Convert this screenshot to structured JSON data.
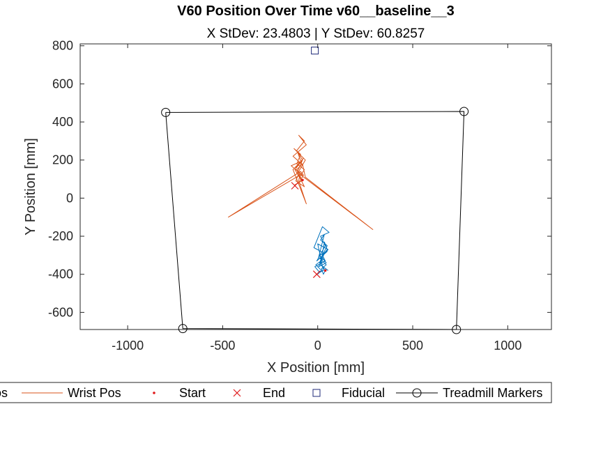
{
  "chart_data": {
    "type": "line",
    "title": "V60 Position Over Time v60__baseline__3",
    "subtitle": "X StDev: 23.4803  |  Y StDev: 60.8257",
    "xlabel": "X Position [mm]",
    "ylabel": "Y Position [mm]",
    "xlim": [
      -1250,
      1230
    ],
    "ylim": [
      -690,
      810
    ],
    "xticks": [
      -1000,
      -500,
      0,
      500,
      1000
    ],
    "xtick_labels": [
      "-1000",
      "-500",
      "0",
      "500",
      "1000"
    ],
    "yticks": [
      -600,
      -400,
      -200,
      0,
      200,
      400,
      600,
      800
    ],
    "ytick_labels": [
      "-600",
      "-400",
      "-200",
      "0",
      "200",
      "400",
      "600",
      "800"
    ],
    "grid": false,
    "legend_position": "bottom-outside",
    "legend": [
      "os",
      "Wrist Pos",
      "Start",
      "End",
      "Fiducial",
      "Treadmill Markers"
    ],
    "series": [
      {
        "name": "Wrist Pos",
        "color": "#D95319",
        "x": [
          -90,
          -120,
          -80,
          -110,
          -70,
          -100,
          -60,
          -130,
          -85,
          -105,
          -75,
          -115,
          -95,
          -140,
          -80,
          -100,
          -65,
          -125,
          -90,
          -110,
          -70,
          -95,
          -85,
          -120,
          -100,
          -75,
          -90,
          -470,
          -95,
          -110,
          -80,
          -65,
          290,
          -100,
          -115,
          -70,
          -90,
          -95,
          -100,
          -60,
          -130,
          -80,
          -110,
          -90,
          -85
        ],
        "y": [
          100,
          150,
          200,
          250,
          300,
          330,
          280,
          220,
          180,
          240,
          210,
          160,
          190,
          170,
          120,
          140,
          200,
          260,
          230,
          180,
          150,
          110,
          90,
          70,
          80,
          120,
          140,
          -100,
          120,
          150,
          180,
          110,
          -165,
          130,
          90,
          60,
          100,
          120,
          90,
          -30,
          150,
          200,
          130,
          110,
          95
        ]
      },
      {
        "name": "os",
        "color": "#0072BD",
        "x": [
          0,
          20,
          -10,
          30,
          10,
          50,
          -5,
          40,
          15,
          60,
          25,
          -20,
          35,
          5,
          45,
          20,
          55,
          0,
          30,
          10,
          -15,
          40,
          25,
          50,
          15,
          35,
          5,
          45,
          20,
          30,
          40,
          10,
          25,
          50,
          35,
          15,
          55
        ],
        "y": [
          -400,
          -380,
          -350,
          -320,
          -300,
          -280,
          -330,
          -250,
          -200,
          -180,
          -150,
          -260,
          -290,
          -360,
          -340,
          -310,
          -270,
          -240,
          -380,
          -390,
          -360,
          -330,
          -300,
          -250,
          -220,
          -190,
          -310,
          -350,
          -370,
          -400,
          -380,
          -340,
          -300,
          -270,
          -230,
          -350,
          -380
        ]
      },
      {
        "name": "Treadmill Markers",
        "color": "#000000",
        "x": [
          -800,
          770,
          730,
          -710,
          -800
        ],
        "y": [
          450,
          455,
          -690,
          -685,
          450
        ]
      }
    ],
    "start_points": [
      {
        "x": -80,
        "y": 95
      },
      {
        "x": 40,
        "y": -380
      }
    ],
    "end_points": [
      {
        "x": -120,
        "y": 65
      },
      {
        "x": -5,
        "y": -400
      }
    ],
    "fiducial": {
      "x": -15,
      "y": 775
    },
    "colors": {
      "wrist": "#D95319",
      "os": "#0072BD",
      "markers": "#000000",
      "start_end": "#E0191A",
      "fiducial": "#1F2A7A"
    }
  }
}
